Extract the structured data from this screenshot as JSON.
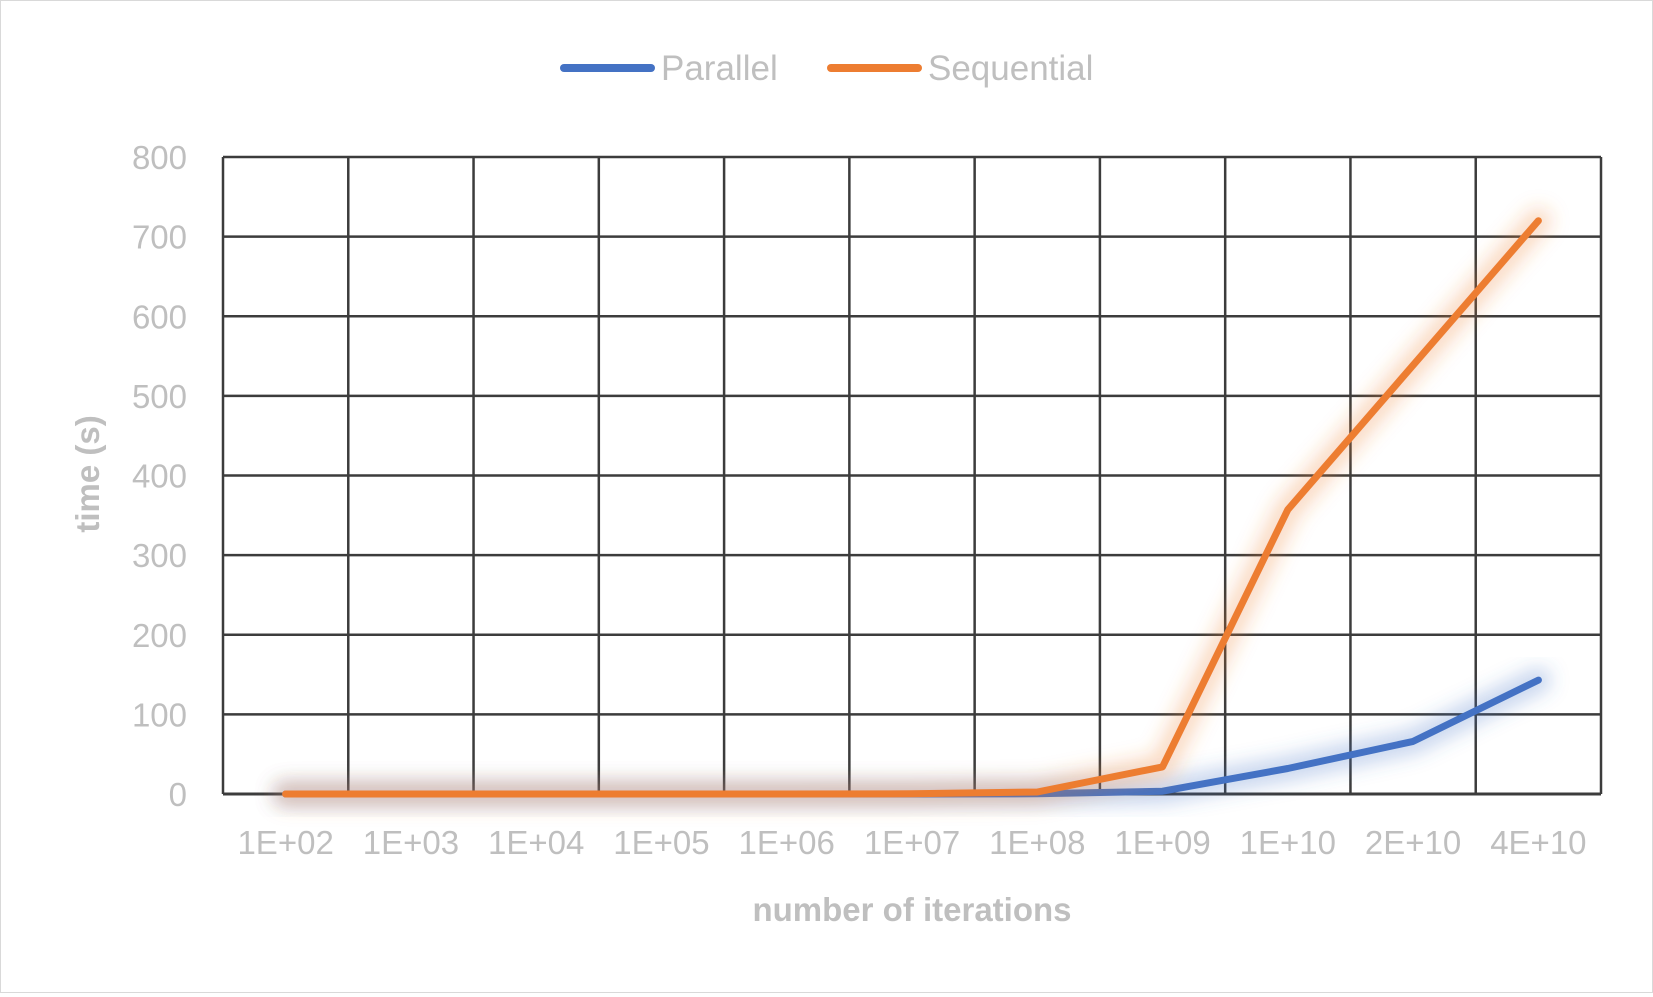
{
  "chart_data": {
    "type": "line",
    "title": "",
    "xlabel": "number of iterations",
    "ylabel": "time (s)",
    "categories": [
      "1E+02",
      "1E+03",
      "1E+04",
      "1E+05",
      "1E+06",
      "1E+07",
      "1E+08",
      "1E+09",
      "1E+10",
      "2E+10",
      "4E+10"
    ],
    "yticks": [
      "0",
      "100",
      "200",
      "300",
      "400",
      "500",
      "600",
      "700",
      "800"
    ],
    "ylim": [
      0,
      800
    ],
    "grid": true,
    "legend_position": "top-center",
    "series": [
      {
        "name": "Parallel",
        "color": "#4472c4",
        "values": [
          0,
          0,
          0,
          0,
          0,
          0,
          0.3,
          3.5,
          32,
          66,
          143
        ]
      },
      {
        "name": "Sequential",
        "color": "#ed7d31",
        "values": [
          0,
          0,
          0,
          0,
          0,
          0.2,
          2.5,
          34,
          357,
          null,
          720
        ]
      }
    ]
  }
}
